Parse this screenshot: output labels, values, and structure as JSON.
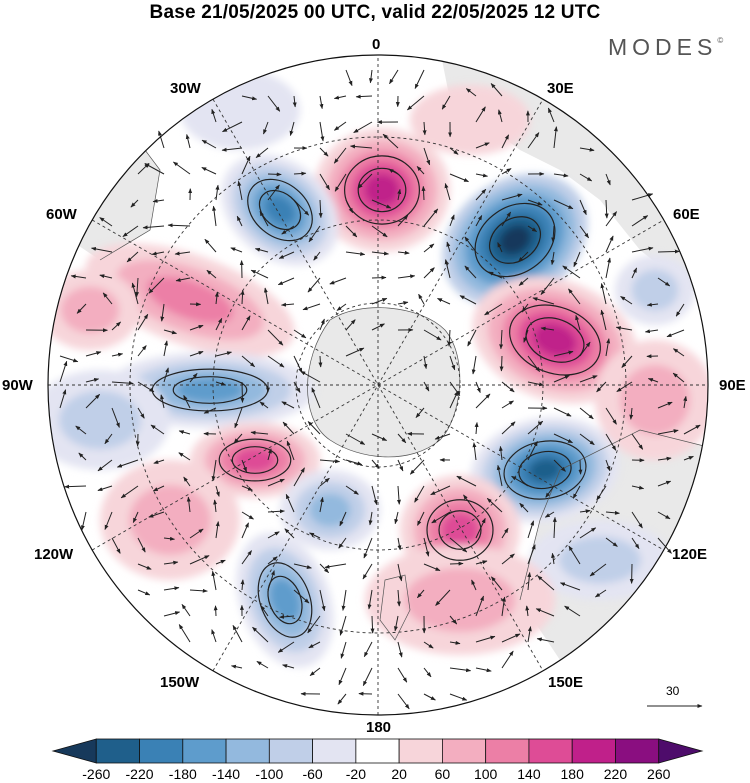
{
  "title": "Base 21/05/2025 00 UTC, valid 22/05/2025 12 UTC",
  "logo": "MODES",
  "logo_mark": "©",
  "longitude_labels": {
    "lon_0": "0",
    "lon_30e": "30E",
    "lon_60e": "60E",
    "lon_90e": "90E",
    "lon_120e": "120E",
    "lon_150e": "150E",
    "lon_180": "180",
    "lon_150w": "150W",
    "lon_120w": "120W",
    "lon_90w": "90W",
    "lon_60w": "60W",
    "lon_30w": "30W"
  },
  "vector_scale_label": "30",
  "colorbar": {
    "levels": [
      "-260",
      "-220",
      "-180",
      "-140",
      "-100",
      "-60",
      "-20",
      "20",
      "60",
      "100",
      "140",
      "180",
      "220",
      "260"
    ],
    "colors": [
      "#17395b",
      "#1f5f8b",
      "#3a81b5",
      "#5e9ccc",
      "#93b9de",
      "#c0cfe8",
      "#e3e4f2",
      "#ffffff",
      "#f7d5da",
      "#f3aec0",
      "#ec7fa6",
      "#de4c96",
      "#c0208a",
      "#8a0e80",
      "#4e0c6b"
    ]
  }
}
